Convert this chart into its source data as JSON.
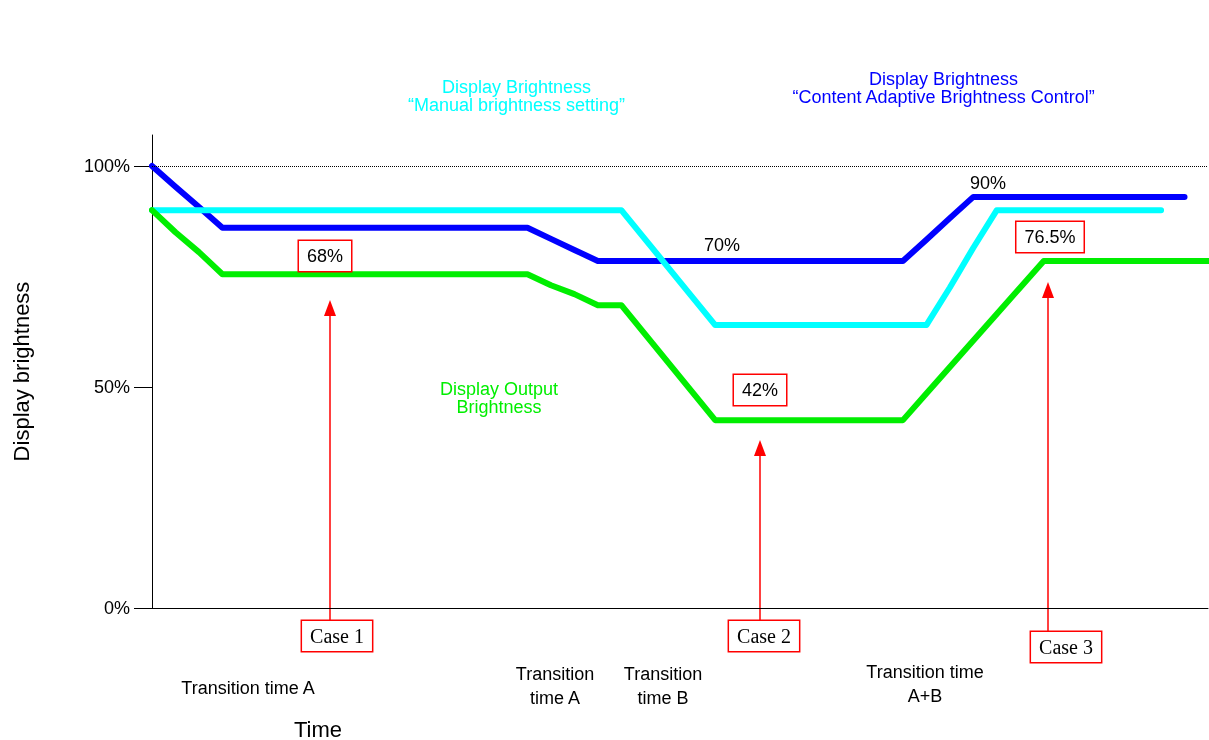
{
  "chart_data": {
    "type": "line",
    "xlabel": "Time",
    "ylabel": "Display brightness",
    "categories": [
      null,
      null,
      null,
      null,
      null,
      null,
      null,
      null,
      null,
      null,
      null,
      null,
      null,
      null,
      null,
      null,
      null,
      null,
      null,
      null,
      null,
      null,
      null,
      null,
      null,
      null,
      null,
      null,
      null,
      null,
      null,
      null,
      null,
      null,
      null,
      null,
      null,
      null,
      null,
      null,
      null,
      null,
      null,
      null,
      null,
      null
    ],
    "series": [
      {
        "name": "Display Brightness\n“Content Adaptive Brightness Control”",
        "color": "#0000ff",
        "values": [
          100,
          95.3,
          90.7,
          86,
          86,
          86,
          86,
          86,
          86,
          86,
          86,
          86,
          86,
          86,
          86,
          86,
          86,
          83.5,
          81,
          78.5,
          78.5,
          78.5,
          78.5,
          78.5,
          78.5,
          78.5,
          78.5,
          78.5,
          78.5,
          78.5,
          78.5,
          78.5,
          78.5,
          83.3,
          88.2,
          93,
          93,
          93,
          93,
          93,
          93,
          93,
          93,
          93,
          93,
          null
        ]
      },
      {
        "name": "Display Brightness\n“Manual brightness setting”",
        "color": "#00ffff",
        "values": [
          90,
          90,
          90,
          90,
          90,
          90,
          90,
          90,
          90,
          90,
          90,
          90,
          90,
          90,
          90,
          90,
          90,
          90,
          90,
          90,
          90,
          83.5,
          77,
          70.5,
          64,
          64,
          64,
          64,
          64,
          64,
          64,
          64,
          64,
          64,
          72.5,
          81.5,
          90,
          90,
          90,
          90,
          90,
          90,
          90,
          90,
          null,
          null
        ]
      },
      {
        "name": "Display Output\nBrightness",
        "color": "#00ee00",
        "values": [
          90,
          85,
          80.5,
          75.5,
          75.5,
          75.5,
          75.5,
          75.5,
          75.5,
          75.5,
          75.5,
          75.5,
          75.5,
          75.5,
          75.5,
          75.5,
          75.5,
          73,
          71,
          68.5,
          68.5,
          62,
          55.5,
          49,
          42.5,
          42.5,
          42.5,
          42.5,
          42.5,
          42.5,
          42.5,
          42.5,
          42.5,
          48.5,
          54.5,
          60.5,
          66.5,
          72.5,
          78.5,
          78.5,
          78.5,
          78.5,
          78.5,
          78.5,
          78.5,
          78.5
        ]
      }
    ],
    "ylim": [
      0,
      107
    ],
    "yticks": [
      {
        "value": 0,
        "label": "0%"
      },
      {
        "value": 50,
        "label": "50%"
      },
      {
        "value": 100,
        "label": "100%"
      }
    ],
    "grid": false,
    "legend": false,
    "marker": "none",
    "line_style": "solid",
    "tick_labels": "y",
    "ref_lines": [
      {
        "axis": "y",
        "value": 100,
        "label": null,
        "color": "#000000",
        "line_style": "dotted"
      }
    ],
    "annotations": [
      "68%",
      "70%",
      "42%",
      "90%",
      "76.5%",
      "Case 1",
      "Case 2",
      "Case 3",
      "Transition time A",
      "Transition\ntime A",
      "Transition\ntime B",
      "Transition time\nA+B"
    ]
  }
}
